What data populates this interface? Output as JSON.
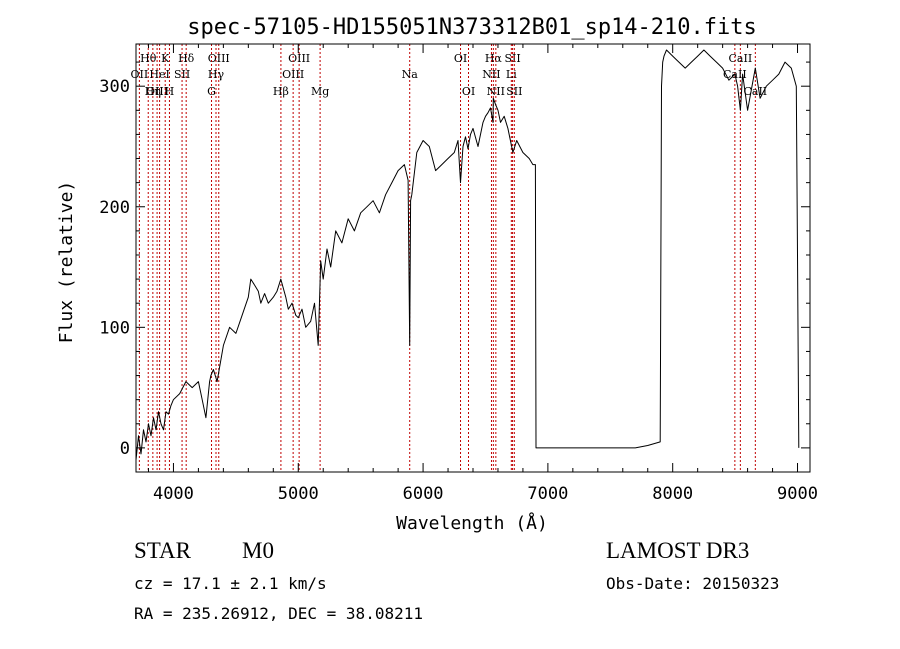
{
  "chart_data": {
    "type": "line",
    "title": "spec-57105-HD155051N373312B01_sp14-210.fits",
    "xlabel": "Wavelength (Å)",
    "ylabel": "Flux (relative)",
    "xlim": [
      3700,
      9100
    ],
    "ylim": [
      -20,
      335
    ],
    "xticks": [
      4000,
      5000,
      6000,
      7000,
      8000,
      9000
    ],
    "yticks": [
      0,
      100,
      200,
      300
    ],
    "series": [
      {
        "name": "spectrum",
        "x": [
          3700,
          3720,
          3740,
          3760,
          3780,
          3800,
          3820,
          3840,
          3860,
          3880,
          3900,
          3920,
          3940,
          3960,
          3980,
          4000,
          4050,
          4100,
          4150,
          4200,
          4230,
          4260,
          4290,
          4300,
          4320,
          4350,
          4400,
          4450,
          4500,
          4550,
          4600,
          4620,
          4650,
          4680,
          4700,
          4730,
          4760,
          4800,
          4830,
          4860,
          4900,
          4920,
          4950,
          4980,
          5000,
          5030,
          5060,
          5100,
          5130,
          5160,
          5180,
          5200,
          5230,
          5260,
          5300,
          5350,
          5400,
          5450,
          5500,
          5550,
          5600,
          5650,
          5700,
          5750,
          5800,
          5850,
          5880,
          5893,
          5900,
          5910,
          5950,
          6000,
          6050,
          6100,
          6150,
          6200,
          6250,
          6280,
          6300,
          6320,
          6340,
          6360,
          6380,
          6400,
          6440,
          6480,
          6500,
          6520,
          6540,
          6560,
          6563,
          6580,
          6600,
          6620,
          6650,
          6680,
          6700,
          6720,
          6750,
          6800,
          6850,
          6880,
          6900,
          6905,
          6910,
          7000,
          7100,
          7200,
          7300,
          7400,
          7500,
          7600,
          7700,
          7800,
          7900,
          7910,
          7920,
          7930,
          7950,
          8000,
          8050,
          8100,
          8150,
          8200,
          8250,
          8300,
          8350,
          8400,
          8450,
          8498,
          8520,
          8542,
          8560,
          8600,
          8662,
          8700,
          8750,
          8800,
          8850,
          8900,
          8950,
          8990,
          9000,
          9010
        ],
        "y": [
          -10,
          10,
          -5,
          15,
          5,
          20,
          10,
          25,
          15,
          30,
          20,
          15,
          30,
          28,
          35,
          40,
          45,
          55,
          50,
          55,
          40,
          25,
          55,
          60,
          65,
          55,
          85,
          100,
          95,
          110,
          125,
          140,
          135,
          130,
          120,
          128,
          120,
          125,
          130,
          140,
          125,
          115,
          120,
          110,
          108,
          115,
          100,
          105,
          120,
          85,
          155,
          140,
          165,
          150,
          180,
          170,
          190,
          180,
          195,
          200,
          205,
          195,
          210,
          220,
          230,
          235,
          222,
          85,
          205,
          210,
          245,
          255,
          250,
          230,
          235,
          240,
          245,
          255,
          220,
          250,
          258,
          248,
          260,
          265,
          250,
          270,
          275,
          278,
          282,
          270,
          290,
          285,
          280,
          270,
          275,
          265,
          255,
          245,
          255,
          245,
          240,
          235,
          235,
          0,
          0,
          0,
          0,
          0,
          0,
          0,
          0,
          0,
          0,
          2,
          5,
          300,
          320,
          325,
          330,
          325,
          320,
          315,
          320,
          325,
          330,
          325,
          320,
          315,
          305,
          310,
          300,
          280,
          310,
          280,
          315,
          290,
          300,
          305,
          310,
          320,
          315,
          300,
          160,
          0
        ]
      }
    ],
    "lines": [
      {
        "label": "Hθ",
        "x": 3798,
        "row": 1,
        "color": "#c00000"
      },
      {
        "label": "OII",
        "x": 3727,
        "row": 2,
        "color": "#c00000"
      },
      {
        "label": "OIII",
        "x": 3869,
        "row": 3,
        "color": "#c00000"
      },
      {
        "label": "K",
        "x": 3934,
        "row": 1,
        "color": "#c00000"
      },
      {
        "label": "HeI",
        "x": 3889,
        "row": 2,
        "color": "#c00000"
      },
      {
        "label": "Hη",
        "x": 3835,
        "row": 3,
        "color": "#c00000"
      },
      {
        "label": "SII",
        "x": 4069,
        "row": 2,
        "color": "#c00000"
      },
      {
        "label": "H",
        "x": 3968,
        "row": 3,
        "color": "#c00000"
      },
      {
        "label": "Hδ",
        "x": 4102,
        "row": 1,
        "color": "#c00000"
      },
      {
        "label": "OIII",
        "x": 4363,
        "row": 1,
        "color": "#c00000"
      },
      {
        "label": "Hγ",
        "x": 4341,
        "row": 2,
        "color": "#c00000"
      },
      {
        "label": "G",
        "x": 4305,
        "row": 3,
        "color": "#c00000"
      },
      {
        "label": "Hβ",
        "x": 4861,
        "row": 3,
        "color": "#c00000"
      },
      {
        "label": "OIII",
        "x": 5007,
        "row": 1,
        "color": "#c00000"
      },
      {
        "label": "OIII",
        "x": 4959,
        "row": 2,
        "color": "#c00000"
      },
      {
        "label": "Mg",
        "x": 5175,
        "row": 3,
        "color": "#c00000"
      },
      {
        "label": "Na",
        "x": 5893,
        "row": 2,
        "color": "#c00000"
      },
      {
        "label": "OI",
        "x": 6300,
        "row": 1,
        "color": "#c00000"
      },
      {
        "label": "OI",
        "x": 6364,
        "row": 3,
        "color": "#c00000"
      },
      {
        "label": "Hα",
        "x": 6563,
        "row": 1,
        "color": "#c00000"
      },
      {
        "label": "NII",
        "x": 6548,
        "row": 2,
        "color": "#c00000"
      },
      {
        "label": "NII",
        "x": 6583,
        "row": 3,
        "color": "#c00000"
      },
      {
        "label": "SII",
        "x": 6717,
        "row": 1,
        "color": "#c00000"
      },
      {
        "label": "Li",
        "x": 6707,
        "row": 2,
        "color": "#c00000"
      },
      {
        "label": "SII",
        "x": 6731,
        "row": 3,
        "color": "#c00000"
      },
      {
        "label": "CaII",
        "x": 8542,
        "row": 1,
        "color": "#c00000"
      },
      {
        "label": "CaII",
        "x": 8498,
        "row": 2,
        "color": "#c00000"
      },
      {
        "label": "CaII",
        "x": 8662,
        "row": 3,
        "color": "#c00000"
      }
    ]
  },
  "info": {
    "object_class": "STAR",
    "subclass": "M0",
    "survey": "LAMOST DR3",
    "cz": "cz = 17.1 ± 2.1 km/s",
    "obs_date": "Obs-Date: 20150323",
    "radec": "RA = 235.26912, DEC =  38.08211"
  }
}
